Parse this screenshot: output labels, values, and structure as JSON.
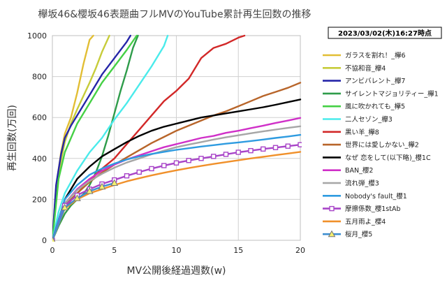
{
  "chart_data": {
    "type": "line",
    "title": "欅坂46&櫻坂46表題曲フルMVのYouTube累計再生回数の推移",
    "timestamp": "2023/03/02(木)16:27時点",
    "xlabel": "MV公開後経過週数(w)",
    "ylabel": "再生回数(万回)",
    "xlim": [
      0,
      20
    ],
    "ylim": [
      0,
      1000
    ],
    "xticks": [
      0,
      5,
      10,
      15,
      20
    ],
    "yticks": [
      0,
      200,
      400,
      600,
      800,
      1000
    ],
    "grid": true,
    "legend_position": "right",
    "series": [
      {
        "name": "ガラスを割れ！_欅6",
        "color": "#E2BE34",
        "marker": "none",
        "x": [
          0,
          0.3,
          0.7,
          1,
          1.5,
          2,
          2.5,
          3,
          3.3
        ],
        "y": [
          0,
          260,
          430,
          520,
          600,
          720,
          860,
          980,
          1000
        ]
      },
      {
        "name": "不協和音_欅4",
        "color": "#C7CC3A",
        "marker": "none",
        "x": [
          0,
          0.5,
          1,
          1.5,
          2,
          3,
          3.5,
          4,
          4.6
        ],
        "y": [
          0,
          330,
          480,
          570,
          640,
          770,
          840,
          920,
          1000
        ]
      },
      {
        "name": "アンビバレント_欅7",
        "color": "#2525A8",
        "marker": "none",
        "x": [
          0,
          0.3,
          0.7,
          1,
          1.5,
          2,
          3,
          4,
          5,
          6,
          6.3
        ],
        "y": [
          0,
          270,
          420,
          500,
          560,
          610,
          710,
          810,
          890,
          970,
          1000
        ]
      },
      {
        "name": "サイレントマジョリティー_欅1",
        "color": "#2E9C4A",
        "marker": "none",
        "x": [
          0,
          0.5,
          1,
          1.5,
          2,
          2.5,
          3,
          3.5,
          4,
          4.5,
          5,
          5.5,
          6,
          6.5,
          6.9
        ],
        "y": [
          0,
          70,
          130,
          170,
          200,
          225,
          270,
          330,
          410,
          510,
          620,
          730,
          830,
          940,
          1000
        ]
      },
      {
        "name": "風に吹かれても_欅5",
        "color": "#45D045",
        "marker": "none",
        "x": [
          0,
          0.5,
          1,
          2,
          3,
          4,
          5,
          6,
          6.8
        ],
        "y": [
          0,
          300,
          430,
          570,
          670,
          770,
          850,
          930,
          1000
        ]
      },
      {
        "name": "二人セゾン_欅3",
        "color": "#4AEBEB",
        "marker": "none",
        "x": [
          0,
          0.5,
          1,
          2,
          3,
          4,
          5,
          6,
          7,
          8,
          9,
          9.3
        ],
        "y": [
          0,
          140,
          230,
          340,
          430,
          500,
          590,
          670,
          760,
          850,
          950,
          1000
        ]
      },
      {
        "name": "黒い羊_欅8",
        "color": "#D22828",
        "marker": "none",
        "x": [
          0,
          1,
          2,
          3,
          4,
          5,
          6,
          7,
          8,
          9,
          10,
          11,
          12,
          13,
          14,
          15,
          15.5
        ],
        "y": [
          0,
          160,
          230,
          290,
          350,
          400,
          470,
          540,
          610,
          680,
          730,
          790,
          890,
          940,
          960,
          990,
          1000
        ]
      },
      {
        "name": "世界には愛しかない_欅2",
        "color": "#B8652A",
        "marker": "none",
        "x": [
          0,
          1,
          2,
          3,
          4,
          5,
          6,
          7,
          8,
          9,
          10,
          11,
          12,
          13,
          14,
          15,
          16,
          17,
          18,
          19,
          20
        ],
        "y": [
          0,
          170,
          230,
          285,
          330,
          370,
          405,
          440,
          475,
          505,
          535,
          560,
          585,
          610,
          630,
          655,
          680,
          705,
          725,
          745,
          770
        ]
      },
      {
        "name": "なぜ 恋をして(以下略)_櫻1C",
        "color": "#000000",
        "marker": "none",
        "x": [
          0,
          1,
          2,
          3,
          4,
          5,
          6,
          7,
          8,
          9,
          10,
          11,
          12,
          13,
          14,
          15,
          16,
          17,
          18,
          19,
          20
        ],
        "y": [
          0,
          200,
          300,
          360,
          410,
          445,
          480,
          510,
          535,
          555,
          570,
          585,
          600,
          610,
          620,
          630,
          640,
          650,
          662,
          675,
          688
        ]
      },
      {
        "name": "BAN_櫻2",
        "color": "#D030C8",
        "marker": "none",
        "x": [
          0,
          1,
          2,
          3,
          4,
          5,
          6,
          7,
          8,
          9,
          10,
          11,
          12,
          13,
          14,
          15,
          16,
          17,
          18,
          19,
          20
        ],
        "y": [
          0,
          180,
          250,
          300,
          340,
          370,
          395,
          415,
          435,
          455,
          470,
          485,
          500,
          510,
          525,
          535,
          548,
          560,
          573,
          585,
          598
        ]
      },
      {
        "name": "流れ弾_櫻3",
        "color": "#A6A6A6",
        "marker": "none",
        "x": [
          0,
          1,
          2,
          3,
          4,
          5,
          6,
          7,
          8,
          9,
          10,
          11,
          12,
          13,
          14,
          15,
          16,
          17,
          18,
          19,
          20
        ],
        "y": [
          0,
          180,
          245,
          290,
          325,
          355,
          380,
          400,
          420,
          438,
          455,
          468,
          480,
          492,
          503,
          513,
          523,
          532,
          541,
          549,
          557
        ]
      },
      {
        "name": "Nobody's fault_櫻1",
        "color": "#2E9BE0",
        "marker": "none",
        "x": [
          0,
          1,
          2,
          3,
          4,
          5,
          6,
          7,
          8,
          9,
          10,
          11,
          12,
          13,
          14,
          15,
          16,
          17,
          18,
          19,
          20
        ],
        "y": [
          0,
          200,
          270,
          320,
          350,
          375,
          395,
          410,
          422,
          432,
          442,
          450,
          458,
          465,
          472,
          478,
          485,
          492,
          500,
          507,
          515
        ]
      },
      {
        "name": "摩擦係数_櫻1stAb",
        "color": "#A844C8",
        "marker": "square",
        "x": [
          0,
          1,
          2,
          3,
          4,
          5,
          6,
          7,
          8,
          9,
          10,
          11,
          12,
          13,
          14,
          15,
          16,
          17,
          18,
          19,
          20
        ],
        "y": [
          0,
          170,
          220,
          250,
          275,
          295,
          315,
          333,
          350,
          365,
          378,
          390,
          400,
          410,
          420,
          430,
          438,
          446,
          453,
          460,
          467
        ]
      },
      {
        "name": "五月雨よ_櫻4",
        "color": "#F0902A",
        "marker": "none",
        "x": [
          0,
          1,
          2,
          3,
          4,
          5,
          6,
          7,
          8,
          9,
          10,
          11,
          12,
          13,
          14,
          15,
          16,
          17,
          18,
          19,
          20
        ],
        "y": [
          0,
          155,
          200,
          230,
          250,
          270,
          288,
          303,
          317,
          330,
          342,
          353,
          363,
          373,
          382,
          391,
          400,
          408,
          416,
          424,
          432
        ]
      },
      {
        "name": "桜月_櫻5",
        "color": "#3F8FD0",
        "marker": "triangle",
        "x": [
          0,
          1,
          2,
          3,
          4,
          5
        ],
        "y": [
          0,
          160,
          205,
          240,
          262,
          280
        ]
      }
    ]
  }
}
